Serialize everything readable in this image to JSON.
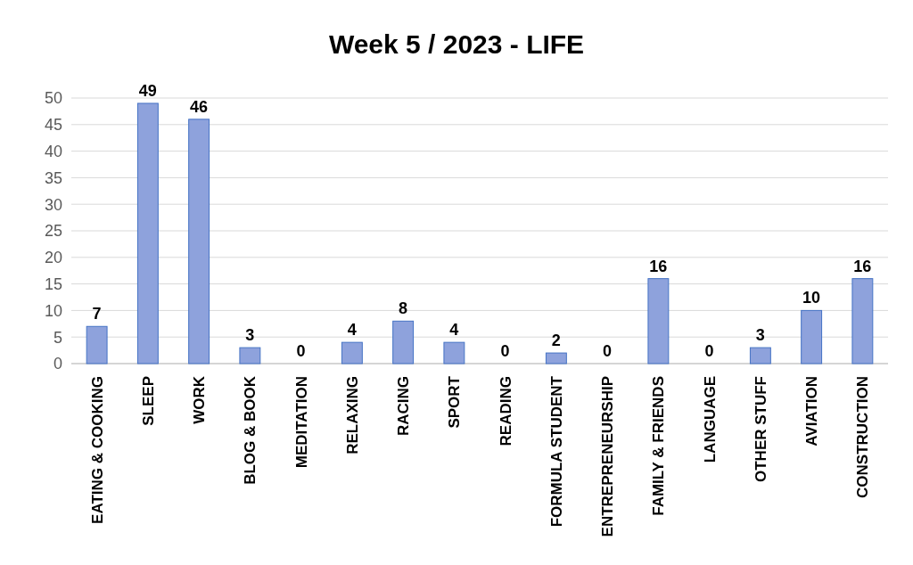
{
  "chart_data": {
    "type": "bar",
    "title": "Week 5 / 2023 - LIFE",
    "categories": [
      "EATING & COOKING",
      "SLEEP",
      "WORK",
      "BLOG & BOOK",
      "MEDITATION",
      "RELAXING",
      "RACING",
      "SPORT",
      "READING",
      "FORMULA STUDENT",
      "ENTREPRENEURSHIP",
      "FAMILY & FRIENDS",
      "LANGUAGE",
      "OTHER STUFF",
      "AVIATION",
      "CONSTRUCTION"
    ],
    "values": [
      7,
      49,
      46,
      3,
      0,
      4,
      8,
      4,
      0,
      2,
      0,
      16,
      0,
      3,
      10,
      16
    ],
    "color": "#8ea2dc",
    "ylim": [
      0,
      50
    ],
    "yticks": [
      0,
      5,
      10,
      15,
      20,
      25,
      30,
      35,
      40,
      45,
      50
    ],
    "grid": "y",
    "data_labels": true
  }
}
